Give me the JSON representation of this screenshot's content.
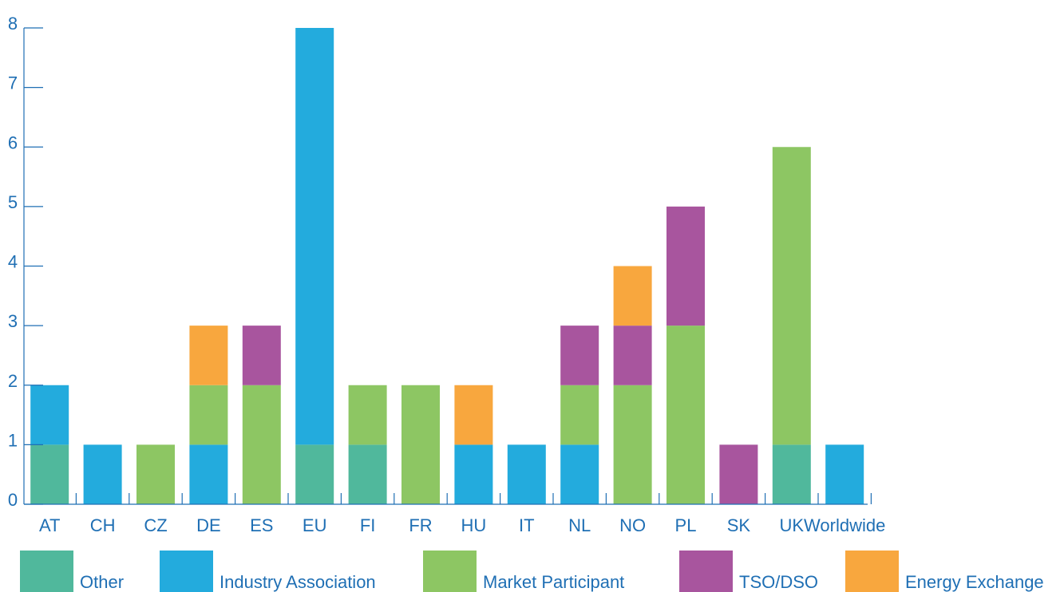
{
  "chart_data": {
    "type": "bar",
    "stacked": true,
    "categories": [
      "AT",
      "CH",
      "CZ",
      "DE",
      "ES",
      "EU",
      "FI",
      "FR",
      "HU",
      "IT",
      "NL",
      "NO",
      "PL",
      "SK",
      "UK",
      "Worldwide"
    ],
    "ylim": [
      0,
      8
    ],
    "yticks": [
      "0",
      "1",
      "2",
      "3",
      "4",
      "5",
      "6",
      "7",
      "8"
    ],
    "grid": false,
    "legend_position": "bottom",
    "series": [
      {
        "name": "Other",
        "color": "#50B89C",
        "values": [
          1,
          0,
          0,
          0,
          0,
          1,
          1,
          0,
          0,
          0,
          0,
          0,
          0,
          0,
          1,
          0
        ]
      },
      {
        "name": "Industry Association",
        "color": "#23ABDD",
        "values": [
          1,
          1,
          0,
          1,
          0,
          7,
          0,
          0,
          1,
          1,
          1,
          0,
          0,
          0,
          0,
          1
        ]
      },
      {
        "name": "Market Participant",
        "color": "#8DC663",
        "values": [
          0,
          0,
          1,
          1,
          2,
          0,
          1,
          2,
          0,
          0,
          1,
          2,
          3,
          0,
          5,
          0
        ]
      },
      {
        "name": "TSO/DSO",
        "color": "#A8559E",
        "values": [
          0,
          0,
          0,
          0,
          1,
          0,
          0,
          0,
          0,
          0,
          1,
          1,
          2,
          1,
          0,
          0
        ]
      },
      {
        "name": "Energy Exchange",
        "color": "#F8A73E",
        "values": [
          0,
          0,
          0,
          1,
          0,
          0,
          0,
          0,
          1,
          0,
          0,
          1,
          0,
          0,
          0,
          0
        ]
      }
    ],
    "axis_color": "#1F6FB4"
  }
}
